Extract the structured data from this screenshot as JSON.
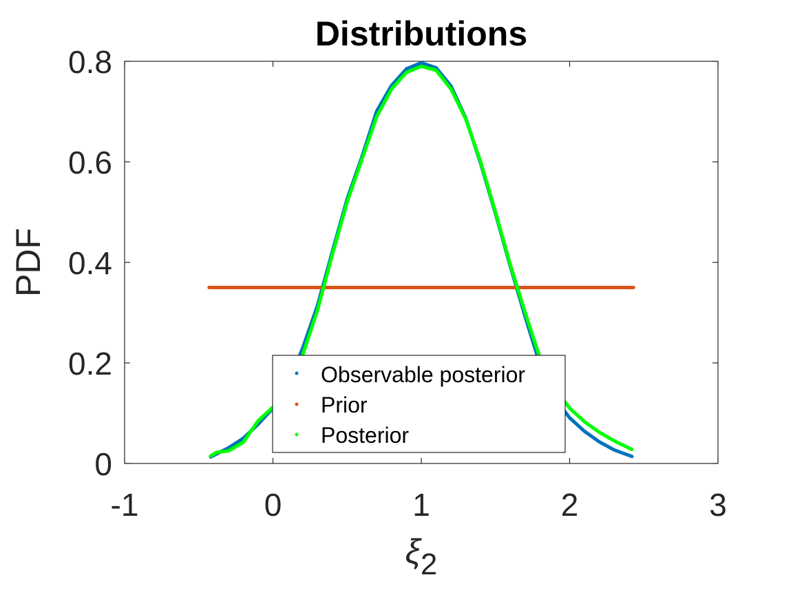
{
  "chart_data": {
    "type": "line",
    "title": "Distributions",
    "xlabel": "ξ",
    "xlabel_subscript": "2",
    "ylabel": "PDF",
    "xlim": [
      -1,
      3
    ],
    "ylim": [
      0,
      0.8
    ],
    "xticks": [
      "-1",
      "0",
      "1",
      "2",
      "3"
    ],
    "yticks": [
      "0",
      "0.2",
      "0.4",
      "0.6",
      "0.8"
    ],
    "grid": false,
    "legend_position": "bottom-center",
    "series": [
      {
        "name": "Observable posterior",
        "color": "#0072BD",
        "x": [
          -0.42,
          -0.3,
          -0.2,
          -0.1,
          0.0,
          0.1,
          0.2,
          0.3,
          0.4,
          0.5,
          0.6,
          0.7,
          0.8,
          0.9,
          1.0,
          1.1,
          1.2,
          1.3,
          1.4,
          1.5,
          1.6,
          1.7,
          1.8,
          1.9,
          2.0,
          2.1,
          2.2,
          2.3,
          2.42
        ],
        "y": [
          0.013,
          0.031,
          0.05,
          0.078,
          0.11,
          0.157,
          0.229,
          0.314,
          0.421,
          0.526,
          0.61,
          0.701,
          0.752,
          0.785,
          0.797,
          0.787,
          0.751,
          0.687,
          0.597,
          0.497,
          0.392,
          0.292,
          0.197,
          0.13,
          0.091,
          0.064,
          0.043,
          0.027,
          0.014
        ]
      },
      {
        "name": "Prior",
        "color": "#D95319",
        "x": [
          -0.43,
          2.43
        ],
        "y": [
          0.35,
          0.35
        ]
      },
      {
        "name": "Posterior",
        "color": "#00FF00",
        "x": [
          -0.42,
          -0.38,
          -0.3,
          -0.2,
          -0.1,
          0.0,
          0.1,
          0.2,
          0.3,
          0.4,
          0.5,
          0.6,
          0.7,
          0.8,
          0.9,
          1.0,
          1.1,
          1.2,
          1.3,
          1.4,
          1.5,
          1.6,
          1.7,
          1.8,
          1.9,
          2.0,
          2.1,
          2.2,
          2.3,
          2.42
        ],
        "y": [
          0.015,
          0.022,
          0.025,
          0.042,
          0.085,
          0.112,
          0.15,
          0.215,
          0.305,
          0.415,
          0.52,
          0.605,
          0.69,
          0.745,
          0.778,
          0.79,
          0.782,
          0.745,
          0.685,
          0.6,
          0.5,
          0.395,
          0.3,
          0.21,
          0.15,
          0.11,
          0.083,
          0.062,
          0.045,
          0.028
        ]
      }
    ]
  }
}
